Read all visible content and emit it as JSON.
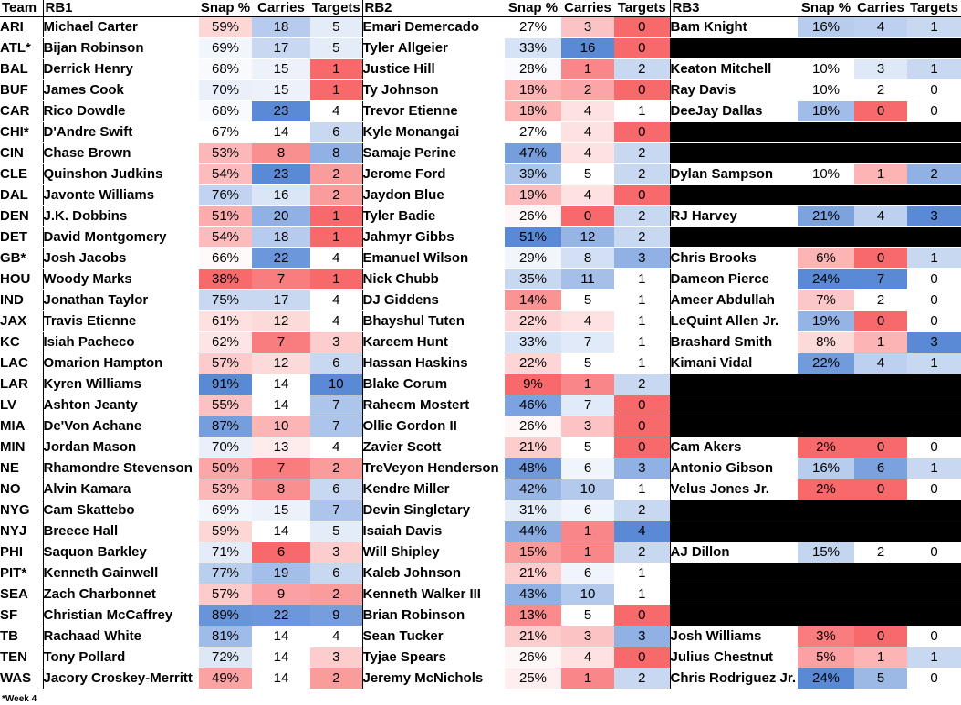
{
  "headers": {
    "team": "Team",
    "rb1": "RB1",
    "rb2": "RB2",
    "rb3": "RB3",
    "snap": "Snap %",
    "carries": "Carries",
    "targets": "Targets"
  },
  "footnote": "*Week 4",
  "colors": {
    "high_blue": "#5a8ad6",
    "low_red": "#f8696b",
    "neutral": "#ffffff",
    "empty": "#000000"
  },
  "rows": [
    {
      "team": "ARI",
      "rb1": {
        "name": "Michael Carter",
        "snap": "59%",
        "carries": "18",
        "targets": "5"
      },
      "rb2": {
        "name": "Emari Demercado",
        "snap": "27%",
        "carries": "3",
        "targets": "0"
      },
      "rb3": {
        "name": "Bam Knight",
        "snap": "16%",
        "carries": "4",
        "targets": "1"
      }
    },
    {
      "team": "ATL*",
      "rb1": {
        "name": "Bijan Robinson",
        "snap": "69%",
        "carries": "17",
        "targets": "5"
      },
      "rb2": {
        "name": "Tyler Allgeier",
        "snap": "33%",
        "carries": "16",
        "targets": "0"
      },
      "rb3": null
    },
    {
      "team": "BAL",
      "rb1": {
        "name": "Derrick Henry",
        "snap": "68%",
        "carries": "15",
        "targets": "1"
      },
      "rb2": {
        "name": "Justice Hill",
        "snap": "28%",
        "carries": "1",
        "targets": "2"
      },
      "rb3": {
        "name": "Keaton Mitchell",
        "snap": "10%",
        "carries": "3",
        "targets": "1"
      }
    },
    {
      "team": "BUF",
      "rb1": {
        "name": "James Cook",
        "snap": "70%",
        "carries": "15",
        "targets": "1"
      },
      "rb2": {
        "name": "Ty Johnson",
        "snap": "18%",
        "carries": "2",
        "targets": "0"
      },
      "rb3": {
        "name": "Ray Davis",
        "snap": "10%",
        "carries": "2",
        "targets": "0"
      }
    },
    {
      "team": "CAR",
      "rb1": {
        "name": "Rico Dowdle",
        "snap": "68%",
        "carries": "23",
        "targets": "4"
      },
      "rb2": {
        "name": "Trevor Etienne",
        "snap": "18%",
        "carries": "4",
        "targets": "1"
      },
      "rb3": {
        "name": "DeeJay Dallas",
        "snap": "18%",
        "carries": "0",
        "targets": "0"
      }
    },
    {
      "team": "CHI*",
      "rb1": {
        "name": "D'Andre Swift",
        "snap": "67%",
        "carries": "14",
        "targets": "6"
      },
      "rb2": {
        "name": "Kyle Monangai",
        "snap": "27%",
        "carries": "4",
        "targets": "0"
      },
      "rb3": null
    },
    {
      "team": "CIN",
      "rb1": {
        "name": "Chase Brown",
        "snap": "53%",
        "carries": "8",
        "targets": "8"
      },
      "rb2": {
        "name": "Samaje Perine",
        "snap": "47%",
        "carries": "4",
        "targets": "2"
      },
      "rb3": null
    },
    {
      "team": "CLE",
      "rb1": {
        "name": "Quinshon Judkins",
        "snap": "54%",
        "carries": "23",
        "targets": "2"
      },
      "rb2": {
        "name": "Jerome Ford",
        "snap": "39%",
        "carries": "5",
        "targets": "2"
      },
      "rb3": {
        "name": "Dylan Sampson",
        "snap": "10%",
        "carries": "1",
        "targets": "2"
      }
    },
    {
      "team": "DAL",
      "rb1": {
        "name": "Javonte Williams",
        "snap": "76%",
        "carries": "16",
        "targets": "2"
      },
      "rb2": {
        "name": "Jaydon Blue",
        "snap": "19%",
        "carries": "4",
        "targets": "0"
      },
      "rb3": null
    },
    {
      "team": "DEN",
      "rb1": {
        "name": "J.K. Dobbins",
        "snap": "51%",
        "carries": "20",
        "targets": "1"
      },
      "rb2": {
        "name": "Tyler Badie",
        "snap": "26%",
        "carries": "0",
        "targets": "2"
      },
      "rb3": {
        "name": "RJ Harvey",
        "snap": "21%",
        "carries": "4",
        "targets": "3"
      }
    },
    {
      "team": "DET",
      "rb1": {
        "name": "David Montgomery",
        "snap": "54%",
        "carries": "18",
        "targets": "1"
      },
      "rb2": {
        "name": "Jahmyr Gibbs",
        "snap": "51%",
        "carries": "12",
        "targets": "2"
      },
      "rb3": null
    },
    {
      "team": "GB*",
      "rb1": {
        "name": "Josh Jacobs",
        "snap": "66%",
        "carries": "22",
        "targets": "4"
      },
      "rb2": {
        "name": "Emanuel Wilson",
        "snap": "29%",
        "carries": "8",
        "targets": "3"
      },
      "rb3": {
        "name": "Chris Brooks",
        "snap": "6%",
        "carries": "0",
        "targets": "1"
      }
    },
    {
      "team": "HOU",
      "rb1": {
        "name": "Woody Marks",
        "snap": "38%",
        "carries": "7",
        "targets": "1"
      },
      "rb2": {
        "name": "Nick Chubb",
        "snap": "35%",
        "carries": "11",
        "targets": "1"
      },
      "rb3": {
        "name": "Dameon Pierce",
        "snap": "24%",
        "carries": "7",
        "targets": "0"
      }
    },
    {
      "team": "IND",
      "rb1": {
        "name": "Jonathan Taylor",
        "snap": "75%",
        "carries": "17",
        "targets": "4"
      },
      "rb2": {
        "name": "DJ Giddens",
        "snap": "14%",
        "carries": "5",
        "targets": "1"
      },
      "rb3": {
        "name": "Ameer Abdullah",
        "snap": "7%",
        "carries": "2",
        "targets": "0"
      }
    },
    {
      "team": "JAX",
      "rb1": {
        "name": "Travis Etienne",
        "snap": "61%",
        "carries": "12",
        "targets": "4"
      },
      "rb2": {
        "name": "Bhayshul Tuten",
        "snap": "22%",
        "carries": "4",
        "targets": "1"
      },
      "rb3": {
        "name": "LeQuint Allen Jr.",
        "snap": "19%",
        "carries": "0",
        "targets": "0"
      }
    },
    {
      "team": "KC",
      "rb1": {
        "name": "Isiah Pacheco",
        "snap": "62%",
        "carries": "7",
        "targets": "3"
      },
      "rb2": {
        "name": "Kareem Hunt",
        "snap": "33%",
        "carries": "7",
        "targets": "1"
      },
      "rb3": {
        "name": "Brashard Smith",
        "snap": "8%",
        "carries": "1",
        "targets": "3"
      }
    },
    {
      "team": "LAC",
      "rb1": {
        "name": "Omarion Hampton",
        "snap": "57%",
        "carries": "12",
        "targets": "6"
      },
      "rb2": {
        "name": "Hassan Haskins",
        "snap": "22%",
        "carries": "5",
        "targets": "1"
      },
      "rb3": {
        "name": "Kimani Vidal",
        "snap": "22%",
        "carries": "4",
        "targets": "1"
      }
    },
    {
      "team": "LAR",
      "rb1": {
        "name": "Kyren Williams",
        "snap": "91%",
        "carries": "14",
        "targets": "10"
      },
      "rb2": {
        "name": "Blake Corum",
        "snap": "9%",
        "carries": "1",
        "targets": "2"
      },
      "rb3": null
    },
    {
      "team": "LV",
      "rb1": {
        "name": "Ashton Jeanty",
        "snap": "55%",
        "carries": "14",
        "targets": "7"
      },
      "rb2": {
        "name": "Raheem Mostert",
        "snap": "46%",
        "carries": "7",
        "targets": "0"
      },
      "rb3": null
    },
    {
      "team": "MIA",
      "rb1": {
        "name": "De'Von Achane",
        "snap": "87%",
        "carries": "10",
        "targets": "7"
      },
      "rb2": {
        "name": "Ollie Gordon II",
        "snap": "26%",
        "carries": "3",
        "targets": "0"
      },
      "rb3": null
    },
    {
      "team": "MIN",
      "rb1": {
        "name": "Jordan Mason",
        "snap": "70%",
        "carries": "13",
        "targets": "4"
      },
      "rb2": {
        "name": "Zavier Scott",
        "snap": "21%",
        "carries": "5",
        "targets": "0"
      },
      "rb3": {
        "name": "Cam Akers",
        "snap": "2%",
        "carries": "0",
        "targets": "0"
      }
    },
    {
      "team": "NE",
      "rb1": {
        "name": "Rhamondre Stevenson",
        "snap": "50%",
        "carries": "7",
        "targets": "2"
      },
      "rb2": {
        "name": "TreVeyon Henderson",
        "snap": "48%",
        "carries": "6",
        "targets": "3"
      },
      "rb3": {
        "name": "Antonio Gibson",
        "snap": "16%",
        "carries": "6",
        "targets": "1"
      }
    },
    {
      "team": "NO",
      "rb1": {
        "name": "Alvin Kamara",
        "snap": "53%",
        "carries": "8",
        "targets": "6"
      },
      "rb2": {
        "name": "Kendre Miller",
        "snap": "42%",
        "carries": "10",
        "targets": "1"
      },
      "rb3": {
        "name": "Velus Jones Jr.",
        "snap": "2%",
        "carries": "0",
        "targets": "0"
      }
    },
    {
      "team": "NYG",
      "rb1": {
        "name": "Cam Skattebo",
        "snap": "69%",
        "carries": "15",
        "targets": "7"
      },
      "rb2": {
        "name": "Devin Singletary",
        "snap": "31%",
        "carries": "6",
        "targets": "2"
      },
      "rb3": null
    },
    {
      "team": "NYJ",
      "rb1": {
        "name": "Breece Hall",
        "snap": "59%",
        "carries": "14",
        "targets": "5"
      },
      "rb2": {
        "name": "Isaiah Davis",
        "snap": "44%",
        "carries": "1",
        "targets": "4"
      },
      "rb3": null
    },
    {
      "team": "PHI",
      "rb1": {
        "name": "Saquon Barkley",
        "snap": "71%",
        "carries": "6",
        "targets": "3"
      },
      "rb2": {
        "name": "Will Shipley",
        "snap": "15%",
        "carries": "1",
        "targets": "2"
      },
      "rb3": {
        "name": "AJ Dillon",
        "snap": "15%",
        "carries": "2",
        "targets": "0"
      }
    },
    {
      "team": "PIT*",
      "rb1": {
        "name": "Kenneth Gainwell",
        "snap": "77%",
        "carries": "19",
        "targets": "6"
      },
      "rb2": {
        "name": "Kaleb Johnson",
        "snap": "21%",
        "carries": "6",
        "targets": "1"
      },
      "rb3": null
    },
    {
      "team": "SEA",
      "rb1": {
        "name": "Zach Charbonnet",
        "snap": "57%",
        "carries": "9",
        "targets": "2"
      },
      "rb2": {
        "name": "Kenneth Walker III",
        "snap": "43%",
        "carries": "10",
        "targets": "1"
      },
      "rb3": null
    },
    {
      "team": "SF",
      "rb1": {
        "name": "Christian McCaffrey",
        "snap": "89%",
        "carries": "22",
        "targets": "9"
      },
      "rb2": {
        "name": "Brian Robinson",
        "snap": "13%",
        "carries": "5",
        "targets": "0"
      },
      "rb3": null
    },
    {
      "team": "TB",
      "rb1": {
        "name": "Rachaad White",
        "snap": "81%",
        "carries": "14",
        "targets": "4"
      },
      "rb2": {
        "name": "Sean Tucker",
        "snap": "21%",
        "carries": "3",
        "targets": "3"
      },
      "rb3": {
        "name": "Josh Williams",
        "snap": "3%",
        "carries": "0",
        "targets": "0"
      }
    },
    {
      "team": "TEN",
      "rb1": {
        "name": "Tony Pollard",
        "snap": "72%",
        "carries": "14",
        "targets": "3"
      },
      "rb2": {
        "name": "Tyjae Spears",
        "snap": "26%",
        "carries": "4",
        "targets": "0"
      },
      "rb3": {
        "name": "Julius Chestnut",
        "snap": "5%",
        "carries": "1",
        "targets": "1"
      }
    },
    {
      "team": "WAS",
      "rb1": {
        "name": "Jacory Croskey-Merritt",
        "snap": "49%",
        "carries": "14",
        "targets": "2"
      },
      "rb2": {
        "name": "Jeremy McNichols",
        "snap": "25%",
        "carries": "1",
        "targets": "2"
      },
      "rb3": {
        "name": "Chris Rodriguez Jr.",
        "snap": "24%",
        "carries": "5",
        "targets": "0"
      }
    }
  ]
}
